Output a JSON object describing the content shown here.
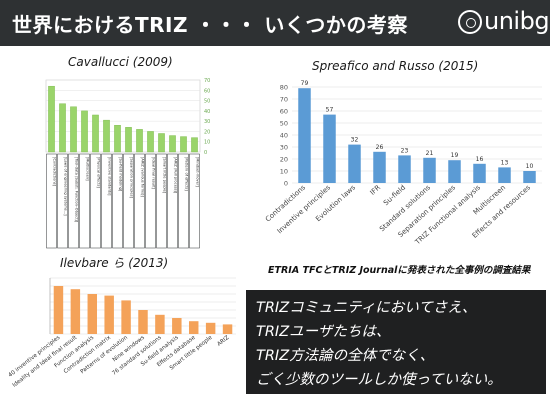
{
  "header": {
    "title": "世界におけるTRIZ ・・・ いくつかの考察",
    "logo_text": "unibg"
  },
  "colors": {
    "header_bg": "#2e3133",
    "cavallucci_bars": "#9ad46a",
    "spreafico_bars": "#5b9bd5",
    "ilevbare_bars": "#f4a259",
    "callout_bg": "#1f2021"
  },
  "chart_data": [
    {
      "type": "bar",
      "title": "Cavallucci (2009)",
      "categories": [
        "[Contradictions]",
        "[Laws of engineering systems...]",
        "[Tool-data (Substi. Function–Object)]",
        "[Multiscreen]",
        "[Physical effects]",
        "[Inventive standards]",
        "[Su-field modeling]",
        "[Separation principles]",
        "[ARIZ (various forms)]",
        "[Ideal final result]",
        "[Smart little people]",
        "[ARIZ (Full process)]",
        "[Pattern of effects]",
        "[Mindset-mover]"
      ],
      "values": [
        64,
        47,
        44,
        40,
        36,
        31,
        26,
        24,
        22,
        20,
        18,
        16,
        15,
        14
      ],
      "ylim": [
        0,
        70
      ],
      "yticks": [
        "0",
        "10",
        "20",
        "30",
        "40",
        "50",
        "60",
        "70"
      ]
    },
    {
      "type": "bar",
      "title": "Spreafico and Russo (2015)",
      "categories": [
        "Contradictions",
        "Inventive principles",
        "Evolution laws",
        "IFR",
        "Su-field",
        "Standard solutions",
        "Separation principles",
        "TRIZ Functional analysis",
        "Multiscreen",
        "Effects and resources"
      ],
      "values": [
        79,
        57,
        32,
        26,
        23,
        21,
        19,
        16,
        13,
        10
      ],
      "ylim": [
        0,
        80
      ],
      "yticks": [
        "0",
        "10",
        "20",
        "30",
        "40",
        "50",
        "60",
        "70",
        "80"
      ]
    },
    {
      "type": "bar",
      "title": "Ilevbare ら (2013)",
      "categories": [
        "40 inventive principles",
        "Ideality and Ideal final result",
        "Function analysis",
        "Contradiction matrix",
        "Patterns of evolution",
        "Nine windows",
        "76 standard solutions",
        "Su-field analysis",
        "Effects database",
        "Smart little people",
        "ARIZ"
      ],
      "values": [
        30,
        28,
        25,
        24,
        21,
        15,
        12,
        10,
        8,
        7,
        6
      ],
      "ylim": [
        0,
        35
      ]
    }
  ],
  "caption": "ETRIA TFCとTRIZ Journalに発表された全事例の調査結果",
  "callout": {
    "lines": [
      "TRIZコミュニティにおいてさえ、",
      "TRIZユーザたちは、",
      "TRIZ方法論の全体でなく、",
      "ごく少数のツールしか使っていない。"
    ]
  }
}
